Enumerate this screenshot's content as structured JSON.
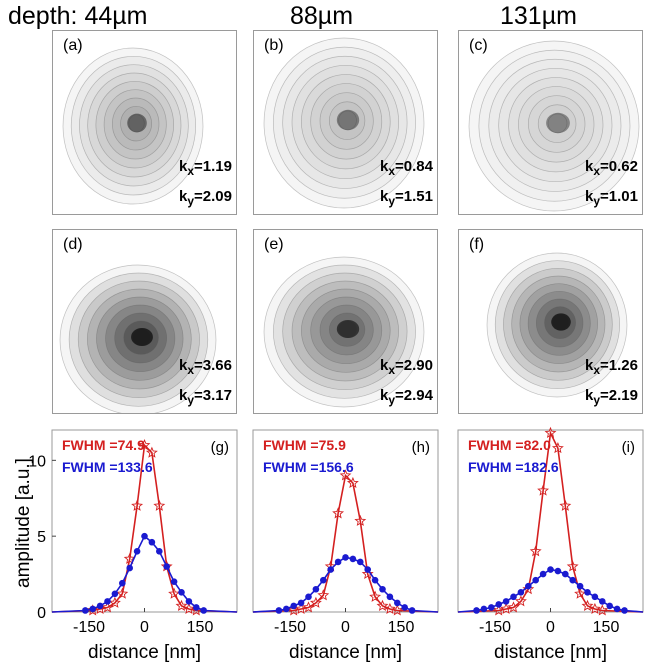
{
  "column_titles": [
    "depth: 44µm",
    "88µm",
    "131µm"
  ],
  "image_panels": [
    {
      "label": "(a)",
      "kx": "=1.19",
      "ky": "=2.09"
    },
    {
      "label": "(b)",
      "kx": "=0.84",
      "ky": "=1.51"
    },
    {
      "label": "(c)",
      "kx": "=0.62",
      "ky": "=1.01"
    },
    {
      "label": "(d)",
      "kx": "=3.66",
      "ky": "=3.17"
    },
    {
      "label": "(e)",
      "kx": "=2.90",
      "ky": "=2.94"
    },
    {
      "label": "(f)",
      "kx": "=1.26",
      "ky": "=2.19"
    }
  ],
  "k_symbols": {
    "kx_k": "k",
    "kx_sub": "x",
    "ky_k": "k",
    "ky_sub": "y"
  },
  "colors": {
    "red": "#d42020",
    "blue": "#1a1ad0",
    "frame": "#9a9a9a",
    "tick_text": "#000000"
  },
  "chart_data": [
    {
      "type": "line",
      "label": "(g)",
      "xlabel": "distance [nm]",
      "ylabel": "amplitude [a.u.]",
      "xlim": [
        -250,
        250
      ],
      "ylim": [
        0,
        12
      ],
      "xticks": [
        -150,
        0,
        150
      ],
      "yticks": [
        0,
        5,
        10
      ],
      "series": [
        {
          "name": "FWHM =74.9",
          "color": "red",
          "marker": "star",
          "fit": true,
          "x": [
            -140,
            -120,
            -100,
            -80,
            -60,
            -40,
            -20,
            0,
            20,
            40,
            60,
            80,
            100,
            120,
            140
          ],
          "y": [
            0.1,
            0.2,
            0.3,
            0.6,
            1.2,
            3.5,
            7.0,
            11.0,
            10.5,
            7.0,
            3.0,
            1.2,
            0.4,
            0.2,
            0.1
          ]
        },
        {
          "name": "FWHM =133.6",
          "color": "blue",
          "marker": "dot",
          "fit": true,
          "x": [
            -160,
            -140,
            -120,
            -100,
            -80,
            -60,
            -40,
            -20,
            0,
            20,
            40,
            60,
            80,
            100,
            120,
            140,
            160
          ],
          "y": [
            0.1,
            0.2,
            0.4,
            0.7,
            1.2,
            1.9,
            2.9,
            4.0,
            5.0,
            4.6,
            4.0,
            3.0,
            2.0,
            1.3,
            0.7,
            0.3,
            0.1
          ]
        }
      ]
    },
    {
      "type": "line",
      "label": "(h)",
      "xlabel": "distance [nm]",
      "ylabel": "",
      "xlim": [
        -250,
        250
      ],
      "ylim": [
        0,
        12
      ],
      "xticks": [
        -150,
        0,
        150
      ],
      "yticks": [],
      "series": [
        {
          "name": "FWHM =75.9",
          "color": "red",
          "marker": "star",
          "fit": true,
          "x": [
            -140,
            -120,
            -100,
            -80,
            -60,
            -40,
            -20,
            0,
            20,
            40,
            60,
            80,
            100,
            120,
            140
          ],
          "y": [
            0.1,
            0.2,
            0.3,
            0.6,
            1.1,
            3.0,
            6.5,
            9.0,
            8.5,
            6.0,
            2.5,
            1.0,
            0.4,
            0.2,
            0.1
          ]
        },
        {
          "name": "FWHM =156.6",
          "color": "blue",
          "marker": "dot",
          "fit": true,
          "x": [
            -180,
            -160,
            -140,
            -120,
            -100,
            -80,
            -60,
            -40,
            -20,
            0,
            20,
            40,
            60,
            80,
            100,
            120,
            140,
            160,
            180
          ],
          "y": [
            0.1,
            0.2,
            0.4,
            0.6,
            1.0,
            1.5,
            2.1,
            2.8,
            3.3,
            3.6,
            3.5,
            3.3,
            2.8,
            2.1,
            1.5,
            1.0,
            0.6,
            0.3,
            0.1
          ]
        }
      ]
    },
    {
      "type": "line",
      "label": "(i)",
      "xlabel": "distance [nm]",
      "ylabel": "",
      "xlim": [
        -250,
        250
      ],
      "ylim": [
        0,
        12
      ],
      "xticks": [
        -150,
        0,
        150
      ],
      "yticks": [],
      "series": [
        {
          "name": "FWHM =82.0",
          "color": "red",
          "marker": "star",
          "fit": true,
          "x": [
            -140,
            -120,
            -100,
            -80,
            -60,
            -40,
            -20,
            0,
            20,
            40,
            60,
            80,
            100,
            120,
            140
          ],
          "y": [
            0.1,
            0.2,
            0.3,
            0.7,
            1.5,
            4.0,
            8.0,
            11.8,
            10.8,
            7.0,
            3.0,
            1.2,
            0.4,
            0.2,
            0.1
          ]
        },
        {
          "name": "FWHM =182.6",
          "color": "blue",
          "marker": "dot",
          "fit": true,
          "x": [
            -200,
            -180,
            -160,
            -140,
            -120,
            -100,
            -80,
            -60,
            -40,
            -20,
            0,
            20,
            40,
            60,
            80,
            100,
            120,
            140,
            160,
            180,
            200
          ],
          "y": [
            0.1,
            0.2,
            0.3,
            0.5,
            0.7,
            1.0,
            1.3,
            1.7,
            2.1,
            2.5,
            2.8,
            2.7,
            2.5,
            2.1,
            1.7,
            1.3,
            1.0,
            0.7,
            0.4,
            0.2,
            0.1
          ]
        }
      ]
    }
  ]
}
